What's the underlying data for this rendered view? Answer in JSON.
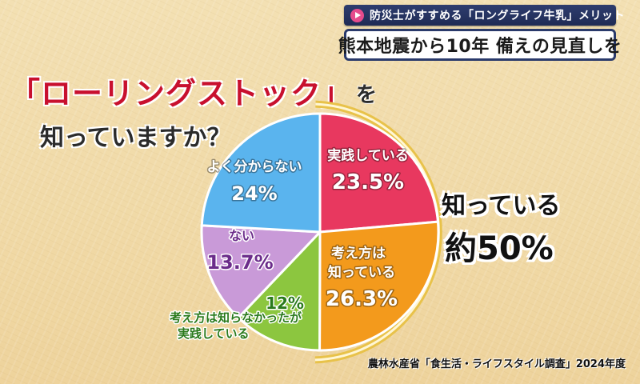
{
  "header": {
    "topic": "防災士がすすめる「ロングライフ牛乳」メリット",
    "headline": "熊本地震から10年 備えの見直しを"
  },
  "question": {
    "term": "「ローリングストック」",
    "particle": "を",
    "line2": "知っていますか？"
  },
  "callout": {
    "line1": "知っている",
    "line2": "約50%"
  },
  "source": "農林水産省「食生活・ライフスタイル調査」2024年度",
  "chart_data": {
    "type": "pie",
    "title": "",
    "slices": [
      {
        "label": "実践している",
        "value": 23.5,
        "value_label": "23.5%",
        "color": "#e8385f",
        "label_color": "#ffffff"
      },
      {
        "label": "考え方は 知っている",
        "value": 26.3,
        "value_label": "26.3%",
        "color": "#f39a1c",
        "label_color": "#ffffff"
      },
      {
        "label": "考え方は知らなかったが 実践している",
        "value": 12,
        "value_label": "12%",
        "color": "#8cc63f",
        "label_color": "#2a7a1c"
      },
      {
        "label": "ない",
        "value": 13.7,
        "value_label": "13.7%",
        "color": "#c99ad8",
        "label_color": "#6b2c8a"
      },
      {
        "label": "よく分からない",
        "value": 24,
        "value_label": "24%",
        "color": "#5ab4ee",
        "label_color": "#ffffff"
      }
    ],
    "highlight_arc_color": "#e8c24a"
  }
}
